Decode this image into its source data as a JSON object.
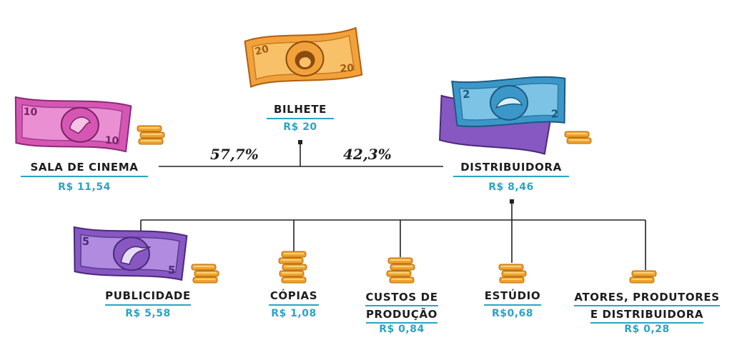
{
  "ticket": {
    "label": "BILHETE",
    "value": "R$ 20"
  },
  "cinema": {
    "label": "SALA DE CINEMA",
    "value": "R$ 11,54",
    "share": "57,7%"
  },
  "distributor": {
    "label": "DISTRIBUIDORA",
    "value": "R$ 8,46",
    "share": "42,3%"
  },
  "breakdown": [
    {
      "label": "PUBLICIDADE",
      "value": "R$ 5,58"
    },
    {
      "label": "CÓPIAS",
      "value": "R$ 1,08"
    },
    {
      "label_line1": "CUSTOS DE",
      "label_line2": "PRODUÇÃO",
      "value": "R$ 0,84"
    },
    {
      "label": "ESTÚDIO",
      "value": "R$0,68"
    },
    {
      "label_line1": "ATORES, PRODUTORES",
      "label_line2": "E DISTRIBUIDORA",
      "value": "R$ 0,28"
    }
  ],
  "banknotes": [
    {
      "denomination": "20",
      "animal": "monkey",
      "color": "#f2a23a"
    },
    {
      "denomination": "10",
      "animal": "parrot",
      "color": "#d557b3"
    },
    {
      "denomination": "2",
      "animal": "turtle",
      "color": "#3c97c9"
    },
    {
      "denomination": "5",
      "animal": "heron",
      "color": "#8757c2"
    }
  ],
  "colors": {
    "accent": "#2aa4c4",
    "coin": "#f0a12c",
    "line": "#222222"
  }
}
